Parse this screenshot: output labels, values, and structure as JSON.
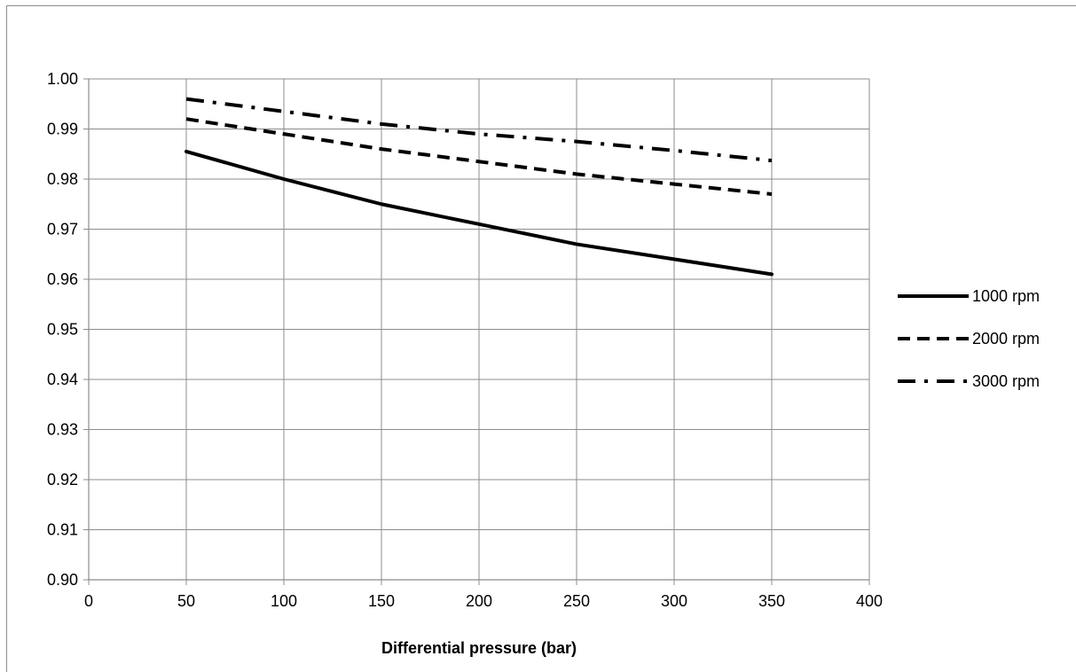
{
  "chart_data": {
    "type": "line",
    "title": "",
    "xlabel": "Differential pressure (bar)",
    "ylabel": "",
    "xlim": [
      0,
      400
    ],
    "ylim": [
      0.9,
      1.0
    ],
    "x_ticks": [
      "0",
      "50",
      "100",
      "150",
      "200",
      "250",
      "300",
      "350",
      "400"
    ],
    "y_ticks": [
      "0.90",
      "0.91",
      "0.92",
      "0.93",
      "0.94",
      "0.95",
      "0.96",
      "0.97",
      "0.98",
      "0.99",
      "1.00"
    ],
    "grid": true,
    "legend_position": "right",
    "x": [
      50,
      100,
      150,
      200,
      250,
      300,
      350
    ],
    "series": [
      {
        "name": "1000 rpm",
        "style": "solid",
        "color": "#000000",
        "values": [
          0.9855,
          0.98,
          0.975,
          0.971,
          0.967,
          0.964,
          0.961
        ]
      },
      {
        "name": "2000 rpm",
        "style": "dashed",
        "color": "#000000",
        "values": [
          0.992,
          0.989,
          0.986,
          0.9835,
          0.981,
          0.979,
          0.977
        ]
      },
      {
        "name": "3000 rpm",
        "style": "dash-dot",
        "color": "#000000",
        "values": [
          0.996,
          0.9935,
          0.991,
          0.989,
          0.9875,
          0.9857,
          0.9837
        ]
      }
    ]
  }
}
